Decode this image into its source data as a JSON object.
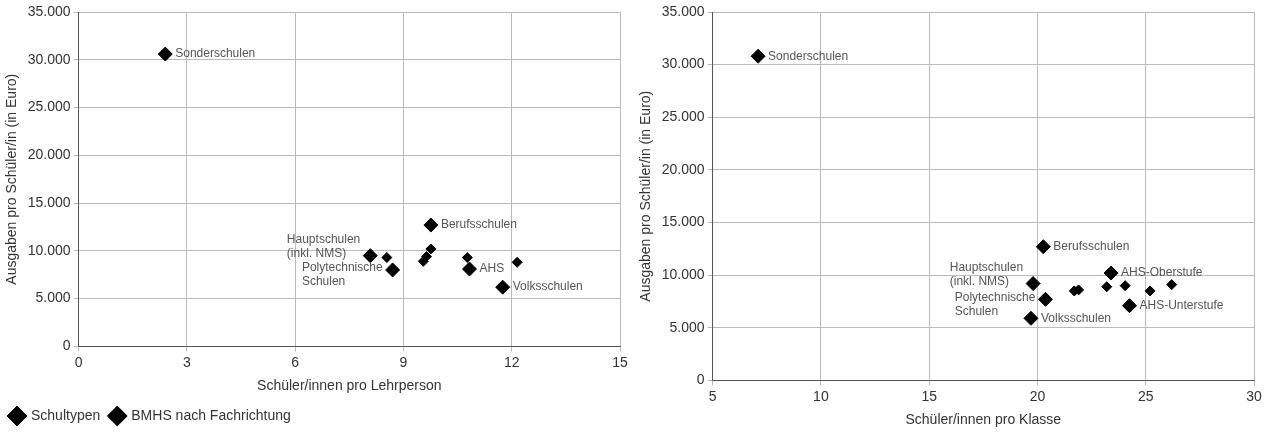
{
  "chart_data": [
    {
      "type": "scatter",
      "xlabel": "Schüler/innen pro Lehrperson",
      "ylabel": "Ausgaben pro Schüler/in (in Euro)",
      "xlim": [
        0,
        15
      ],
      "xticks": [
        0,
        3,
        6,
        9,
        12,
        15
      ],
      "ylim": [
        0,
        35000
      ],
      "yticks": [
        0,
        {
          "value": 5000,
          "label": "5.000"
        },
        {
          "value": 10000,
          "label": "10.000"
        },
        {
          "value": 15000,
          "label": "15.000"
        },
        {
          "value": 20000,
          "label": "20.000"
        },
        {
          "value": 25000,
          "label": "25.000"
        },
        {
          "value": 30000,
          "label": "30.000"
        },
        {
          "value": 35000,
          "label": "35.000"
        }
      ],
      "grid": true,
      "legend": "bottom left",
      "marker": "diamond",
      "series": [
        {
          "name": "Schultypen",
          "color": "#000000",
          "x": [
            2.4,
            8.08,
            8.7,
            9.76,
            10.83,
            11.75
          ],
          "values": [
            30600,
            9500,
            8000,
            12700,
            8100,
            6200
          ]
        },
        {
          "name": "BMHS nach Fachrichtung",
          "color": "#000000",
          "x": [
            8.54,
            9.55,
            9.64,
            9.76,
            10.77,
            12.15
          ],
          "values": [
            9300,
            8900,
            9400,
            10200,
            9300,
            8800
          ]
        }
      ],
      "annotations": [
        {
          "text": "Sonderschulen",
          "x": 2.4,
          "y": 30600
        },
        {
          "text": "Hauptschulen\n(inkl. NMS)",
          "x": 8.08,
          "y": 9500
        },
        {
          "text": "Polytechnische\nSchulen",
          "x": 8.7,
          "y": 8000
        },
        {
          "text": "Berufsschulen",
          "x": 9.76,
          "y": 12700
        },
        {
          "text": "AHS",
          "x": 10.83,
          "y": 8100
        },
        {
          "text": "Volksschulen",
          "x": 11.75,
          "y": 6200
        }
      ]
    },
    {
      "type": "scatter",
      "xlabel": "Schüler/innen pro Klasse",
      "ylabel": "Ausgaben pro Schüler/in (in Euro)",
      "xlim": [
        5,
        30
      ],
      "xticks": [
        5,
        10,
        15,
        20,
        25,
        30
      ],
      "ylim": [
        0,
        35000
      ],
      "yticks": [
        0,
        {
          "value": 5000,
          "label": "5.000"
        },
        {
          "value": 10000,
          "label": "10.000"
        },
        {
          "value": 15000,
          "label": "15.000"
        },
        {
          "value": 20000,
          "label": "20.000"
        },
        {
          "value": 25000,
          "label": "25.000"
        },
        {
          "value": 30000,
          "label": "30.000"
        },
        {
          "value": 35000,
          "label": "35.000"
        }
      ],
      "grid": true,
      "marker": "diamond",
      "series": [
        {
          "color": "#000000",
          "x": [
            7.1,
            19.8,
            20.37,
            19.7,
            20.27,
            23.4,
            24.25
          ],
          "values": [
            30800,
            9200,
            7700,
            5900,
            12700,
            10200,
            7100
          ]
        },
        {
          "color": "#000000",
          "x": [
            21.7,
            21.9,
            23.2,
            24.05,
            25.2,
            26.2
          ],
          "values": [
            8500,
            8600,
            8900,
            9000,
            8500,
            9100
          ]
        }
      ],
      "annotations": [
        {
          "text": "Sonderschulen",
          "x": 7.1,
          "y": 30800
        },
        {
          "text": "Hauptschulen\n(inkl. NMS)",
          "x": 19.8,
          "y": 9200
        },
        {
          "text": "Polytechnische\nSchulen",
          "x": 20.37,
          "y": 7700
        },
        {
          "text": "Volksschulen",
          "x": 19.7,
          "y": 5900
        },
        {
          "text": "Berufsschulen",
          "x": 20.27,
          "y": 12700
        },
        {
          "text": "AHS-Oberstufe",
          "x": 23.4,
          "y": 10200
        },
        {
          "text": "AHS-Unterstufe",
          "x": 24.25,
          "y": 7100
        }
      ]
    }
  ]
}
